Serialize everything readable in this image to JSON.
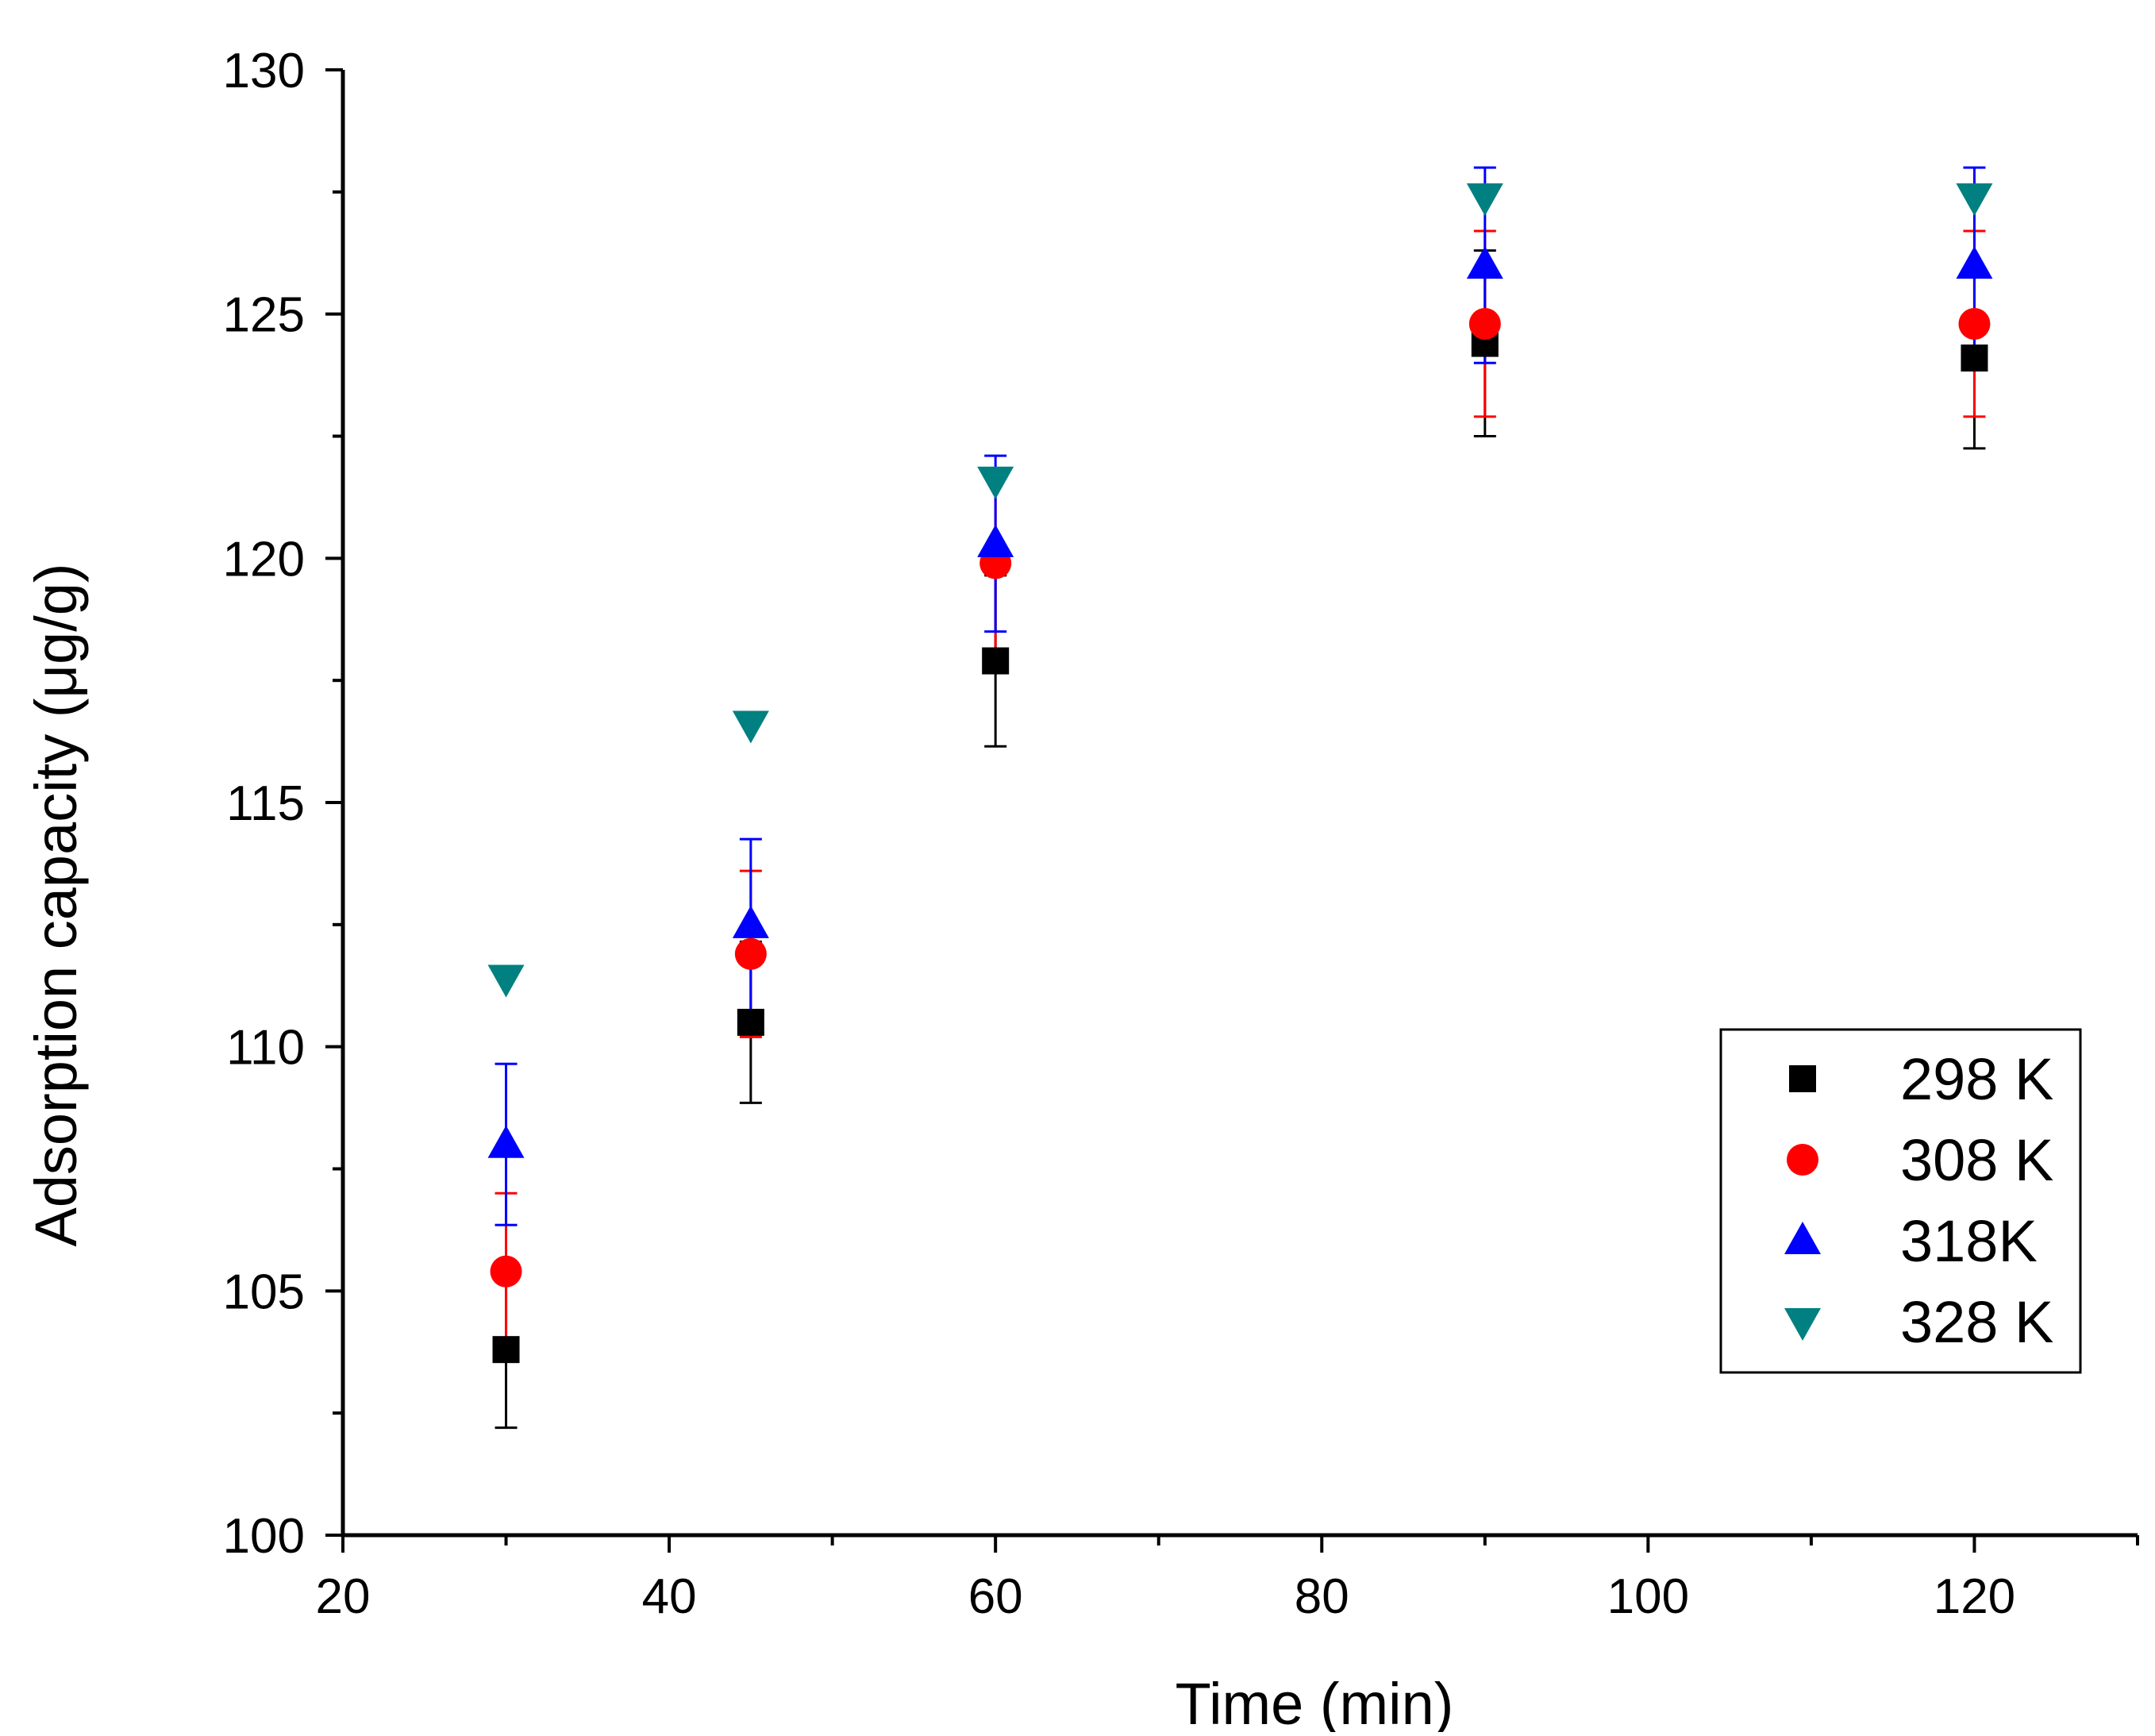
{
  "chart_data": {
    "type": "scatter",
    "title": "",
    "xlabel": "Time (min)",
    "ylabel": "Adsorption capacity (μg/g)",
    "xlim": [
      20,
      130
    ],
    "ylim": [
      100,
      130
    ],
    "x_major_ticks": [
      20,
      40,
      60,
      80,
      100,
      120
    ],
    "x_minor_ticks": [
      30,
      50,
      70,
      90,
      110,
      130
    ],
    "y_major_ticks": [
      100,
      105,
      110,
      115,
      120,
      125,
      130
    ],
    "y_minor_ticks": [
      102.5,
      107.5,
      112.5,
      117.5,
      122.5,
      127.5
    ],
    "grid": false,
    "legend_position": "bottom-right",
    "series": [
      {
        "name": "298 K",
        "marker": "square",
        "color": "#000000",
        "x": [
          30,
          45,
          60,
          90,
          120
        ],
        "y": [
          103.8,
          110.5,
          117.9,
          124.4,
          124.1
        ],
        "err": [
          1.6,
          1.65,
          1.75,
          1.9,
          1.85
        ]
      },
      {
        "name": "308 K",
        "marker": "circle",
        "color": "#ff0000",
        "x": [
          30,
          45,
          60,
          90,
          120
        ],
        "y": [
          105.4,
          111.9,
          119.9,
          124.8,
          124.8
        ],
        "err": [
          1.6,
          1.7,
          1.9,
          1.9,
          1.9
        ]
      },
      {
        "name": "318K",
        "marker": "triangle-up",
        "color": "#0000ff",
        "x": [
          30,
          45,
          60,
          90,
          120
        ],
        "y": [
          108.0,
          112.5,
          120.3,
          126.0,
          126.0
        ],
        "err": [
          1.65,
          1.75,
          1.8,
          2.0,
          2.0
        ]
      },
      {
        "name": "328 K",
        "marker": "triangle-down",
        "color": "#008080",
        "x": [
          30,
          45,
          60,
          90,
          120
        ],
        "y": [
          111.4,
          116.6,
          121.6,
          127.4,
          127.4
        ],
        "err": [
          0.0,
          0.0,
          0.0,
          0.0,
          0.0
        ]
      }
    ]
  }
}
